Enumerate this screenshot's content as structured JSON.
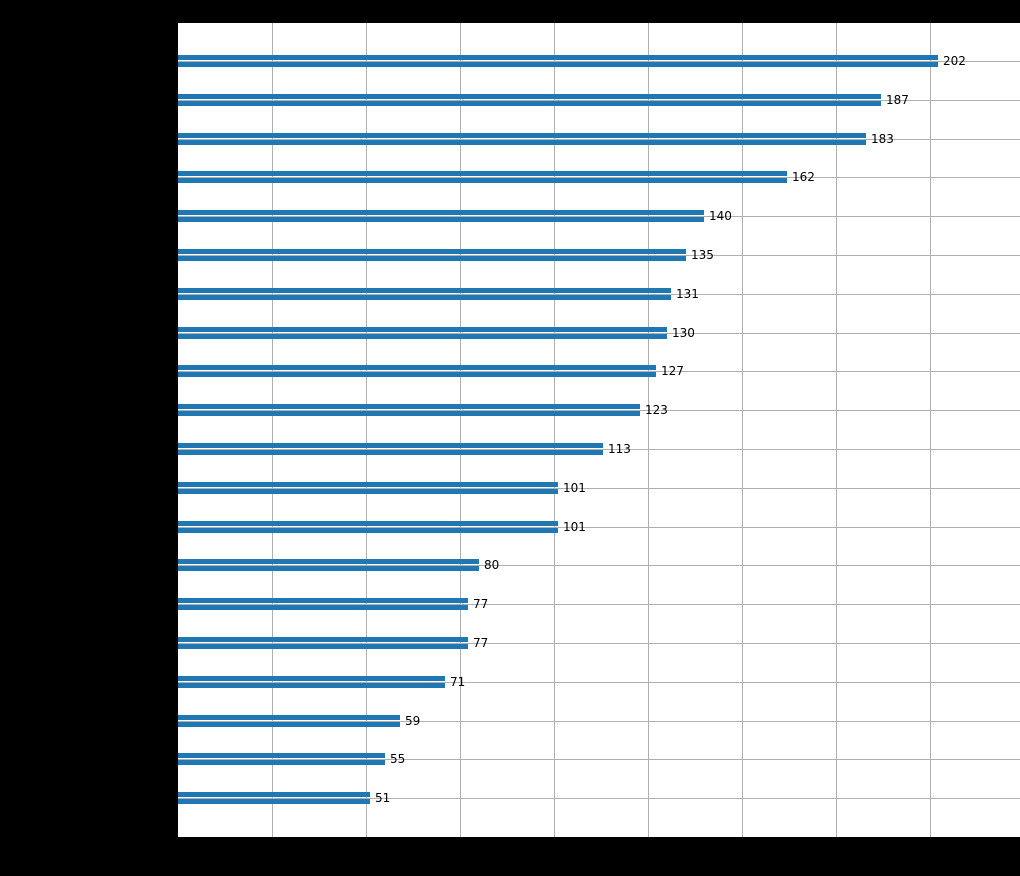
{
  "figure": {
    "background_color": "#000000"
  },
  "chart_data": {
    "type": "bar",
    "orientation": "horizontal",
    "values": [
      202,
      187,
      183,
      162,
      140,
      135,
      131,
      130,
      127,
      123,
      113,
      101,
      101,
      80,
      77,
      77,
      71,
      59,
      55,
      51
    ],
    "bar_labels": [
      "202",
      "187",
      "183",
      "162",
      "140",
      "135",
      "131",
      "130",
      "127",
      "123",
      "113",
      "101",
      "101",
      "80",
      "77",
      "77",
      "71",
      "59",
      "55",
      "51"
    ],
    "xlim": [
      0,
      224
    ],
    "x_gridlines": [
      25,
      50,
      75,
      100,
      125,
      150,
      175,
      200
    ],
    "grid": "both",
    "bar_color": "#1f77b4",
    "gridline_color": "#b0b0b0",
    "plot_background": "#ffffff",
    "value_label_color": "#000000",
    "legend_position": "none"
  }
}
